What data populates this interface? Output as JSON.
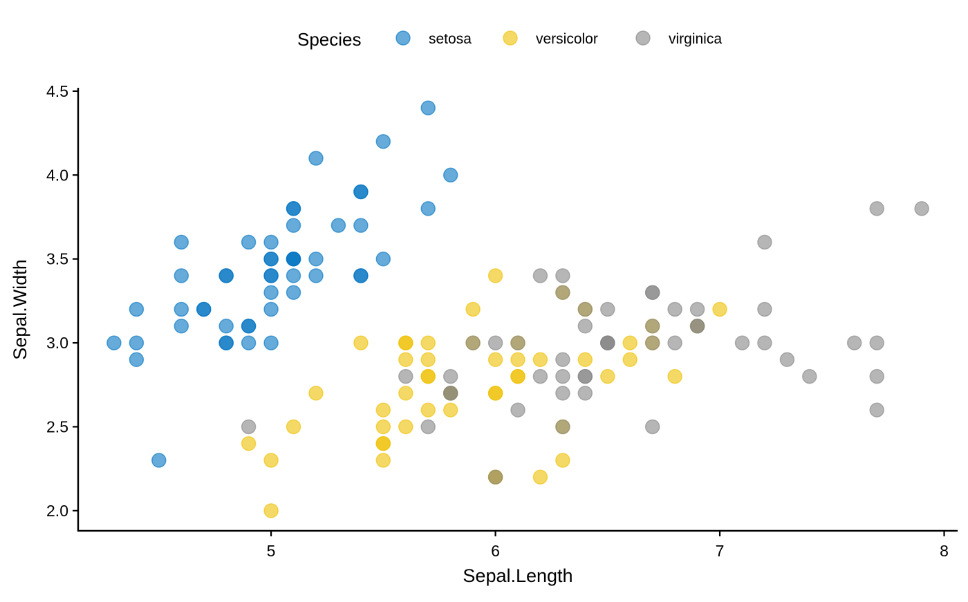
{
  "chart_data": {
    "type": "scatter",
    "title": "",
    "xlabel": "Sepal.Length",
    "ylabel": "Sepal.Width",
    "xlim": [
      4.14,
      8.06
    ],
    "ylim": [
      1.88,
      4.52
    ],
    "x_ticks": [
      5,
      6,
      7,
      8
    ],
    "y_ticks": [
      2.0,
      2.5,
      3.0,
      3.5,
      4.0,
      4.5
    ],
    "y_tick_labels": [
      "2.0",
      "2.5",
      "3.0",
      "3.5",
      "4.0",
      "4.5"
    ],
    "grid": false,
    "legend": {
      "title": "Species",
      "position": "top"
    },
    "series": [
      {
        "name": "setosa",
        "color": "#0073C2",
        "x": [
          4.3,
          4.4,
          4.4,
          4.4,
          4.5,
          4.6,
          4.6,
          4.6,
          4.6,
          4.7,
          4.7,
          4.8,
          4.8,
          4.8,
          4.8,
          4.8,
          4.9,
          4.9,
          4.9,
          4.9,
          5.0,
          5.0,
          5.0,
          5.0,
          5.0,
          5.0,
          5.0,
          5.0,
          5.1,
          5.1,
          5.1,
          5.1,
          5.1,
          5.1,
          5.1,
          5.1,
          5.2,
          5.2,
          5.2,
          5.3,
          5.4,
          5.4,
          5.4,
          5.4,
          5.4,
          5.5,
          5.5,
          5.7,
          5.7,
          5.8
        ],
        "y": [
          3.0,
          2.9,
          3.0,
          3.2,
          2.3,
          3.1,
          3.2,
          3.4,
          3.6,
          3.2,
          3.2,
          3.0,
          3.0,
          3.1,
          3.4,
          3.4,
          3.0,
          3.1,
          3.1,
          3.6,
          3.0,
          3.2,
          3.3,
          3.4,
          3.4,
          3.5,
          3.5,
          3.6,
          3.3,
          3.4,
          3.5,
          3.5,
          3.5,
          3.7,
          3.8,
          3.8,
          3.4,
          3.5,
          4.1,
          3.7,
          3.4,
          3.4,
          3.7,
          3.9,
          3.9,
          3.5,
          4.2,
          3.8,
          4.4,
          4.0
        ]
      },
      {
        "name": "versicolor",
        "color": "#EFC000",
        "x": [
          4.9,
          5.0,
          5.0,
          5.1,
          5.2,
          5.4,
          5.5,
          5.5,
          5.5,
          5.5,
          5.5,
          5.6,
          5.6,
          5.6,
          5.6,
          5.6,
          5.7,
          5.7,
          5.7,
          5.7,
          5.7,
          5.8,
          5.8,
          5.8,
          5.9,
          5.9,
          6.0,
          6.0,
          6.0,
          6.0,
          6.0,
          6.0,
          6.1,
          6.1,
          6.1,
          6.1,
          6.2,
          6.2,
          6.3,
          6.3,
          6.3,
          6.4,
          6.4,
          6.5,
          6.6,
          6.6,
          6.7,
          6.7,
          6.8,
          6.9,
          7.0
        ],
        "y": [
          2.4,
          2.0,
          2.3,
          2.5,
          2.7,
          3.0,
          2.3,
          2.4,
          2.4,
          2.5,
          2.6,
          2.5,
          2.7,
          2.9,
          3.0,
          3.0,
          2.6,
          2.8,
          2.8,
          2.9,
          3.0,
          2.6,
          2.7,
          2.7,
          3.0,
          3.2,
          2.2,
          2.7,
          2.9,
          3.4,
          2.2,
          2.7,
          2.8,
          2.8,
          2.9,
          3.0,
          2.2,
          2.9,
          2.3,
          2.5,
          3.3,
          2.9,
          3.2,
          2.8,
          2.9,
          3.0,
          3.0,
          3.1,
          2.8,
          3.1,
          3.2
        ]
      },
      {
        "name": "virginica",
        "color": "#868686",
        "x": [
          4.9,
          5.6,
          5.7,
          5.8,
          5.8,
          5.8,
          5.9,
          6.0,
          6.0,
          6.1,
          6.1,
          6.2,
          6.2,
          6.3,
          6.3,
          6.3,
          6.3,
          6.3,
          6.3,
          6.4,
          6.4,
          6.4,
          6.4,
          6.4,
          6.5,
          6.5,
          6.5,
          6.5,
          6.7,
          6.7,
          6.7,
          6.7,
          6.7,
          6.8,
          6.8,
          6.9,
          6.9,
          6.9,
          7.1,
          7.2,
          7.2,
          7.2,
          7.3,
          7.4,
          7.6,
          7.7,
          7.7,
          7.7,
          7.7,
          7.9
        ],
        "y": [
          2.5,
          2.8,
          2.5,
          2.7,
          2.7,
          2.8,
          3.0,
          2.2,
          3.0,
          2.6,
          3.0,
          2.8,
          3.4,
          2.5,
          2.7,
          2.8,
          2.9,
          3.3,
          3.4,
          2.7,
          2.8,
          2.8,
          3.1,
          3.2,
          3.0,
          3.0,
          3.0,
          3.2,
          2.5,
          3.0,
          3.1,
          3.3,
          3.3,
          3.0,
          3.2,
          3.1,
          3.1,
          3.2,
          3.0,
          3.0,
          3.2,
          3.6,
          2.9,
          2.8,
          3.0,
          2.6,
          2.8,
          3.0,
          3.8,
          3.8
        ]
      }
    ]
  }
}
